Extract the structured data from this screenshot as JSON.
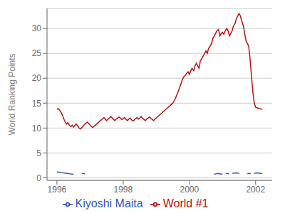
{
  "chart_data": {
    "type": "line",
    "ylabel": "World Ranking Points",
    "xlim": [
      1995.7,
      2002.5
    ],
    "ylim": [
      -0.5,
      34
    ],
    "xticks": [
      1996,
      1998,
      2000,
      2002
    ],
    "yticks": [
      0,
      5,
      10,
      15,
      20,
      25,
      30
    ],
    "grid": "y",
    "legend": "bottom",
    "series": [
      {
        "name": "World #1",
        "color": "#bb1111",
        "x": [
          1996.0,
          1996.04,
          1996.08,
          1996.12,
          1996.17,
          1996.21,
          1996.25,
          1996.29,
          1996.33,
          1996.38,
          1996.42,
          1996.46,
          1996.5,
          1996.54,
          1996.58,
          1996.63,
          1996.67,
          1996.71,
          1996.75,
          1996.79,
          1996.83,
          1996.88,
          1996.92,
          1996.96,
          1997.0,
          1997.04,
          1997.08,
          1997.13,
          1997.17,
          1997.21,
          1997.25,
          1997.29,
          1997.33,
          1997.38,
          1997.42,
          1997.46,
          1997.5,
          1997.54,
          1997.58,
          1997.63,
          1997.67,
          1997.71,
          1997.75,
          1997.79,
          1997.83,
          1997.88,
          1997.92,
          1997.96,
          1998.0,
          1998.04,
          1998.08,
          1998.13,
          1998.17,
          1998.21,
          1998.25,
          1998.29,
          1998.33,
          1998.38,
          1998.42,
          1998.46,
          1998.5,
          1998.54,
          1998.58,
          1998.63,
          1998.67,
          1998.71,
          1998.75,
          1998.79,
          1998.83,
          1998.88,
          1998.92,
          1998.96,
          1999.0,
          1999.04,
          1999.08,
          1999.13,
          1999.17,
          1999.21,
          1999.25,
          1999.29,
          1999.33,
          1999.38,
          1999.42,
          1999.46,
          1999.5,
          1999.54,
          1999.58,
          1999.63,
          1999.67,
          1999.71,
          1999.75,
          1999.79,
          1999.83,
          1999.88,
          1999.92,
          1999.96,
          2000.0,
          2000.04,
          2000.08,
          2000.13,
          2000.17,
          2000.21,
          2000.25,
          2000.29,
          2000.33,
          2000.38,
          2000.42,
          2000.46,
          2000.5,
          2000.54,
          2000.58,
          2000.63,
          2000.67,
          2000.71,
          2000.75,
          2000.79,
          2000.83,
          2000.88,
          2000.92,
          2000.96,
          2001.0,
          2001.04,
          2001.08,
          2001.13,
          2001.17,
          2001.21,
          2001.25,
          2001.29,
          2001.33,
          2001.38,
          2001.42,
          2001.46,
          2001.5,
          2001.54,
          2001.58,
          2001.63,
          2001.67,
          2001.71,
          2001.75,
          2001.79,
          2001.83,
          2001.88,
          2001.92,
          2001.96,
          2002.0,
          2002.1,
          2002.2
        ],
        "values": [
          13.8,
          13.9,
          13.6,
          13.2,
          12.5,
          11.8,
          11.2,
          10.8,
          11.1,
          10.5,
          10.3,
          10.6,
          10.2,
          10.5,
          10.8,
          10.4,
          10.0,
          9.8,
          10.1,
          10.4,
          10.7,
          11.0,
          11.2,
          10.9,
          10.6,
          10.3,
          10.1,
          10.4,
          10.6,
          10.9,
          11.1,
          11.4,
          11.6,
          11.9,
          12.1,
          11.8,
          11.5,
          11.8,
          12.0,
          12.3,
          12.0,
          11.7,
          11.5,
          11.8,
          12.0,
          12.2,
          12.0,
          11.7,
          11.9,
          12.1,
          11.8,
          11.5,
          11.8,
          12.0,
          11.7,
          11.4,
          11.6,
          11.9,
          12.1,
          11.8,
          12.0,
          12.3,
          12.0,
          11.7,
          11.5,
          11.8,
          12.0,
          12.2,
          12.0,
          11.7,
          11.5,
          11.8,
          12.0,
          12.3,
          12.5,
          12.8,
          13.0,
          13.3,
          13.5,
          13.8,
          14.0,
          14.3,
          14.5,
          14.8,
          15.0,
          15.5,
          16.0,
          16.8,
          17.5,
          18.2,
          19.0,
          19.8,
          20.3,
          20.6,
          21.0,
          21.3,
          20.8,
          21.5,
          22.0,
          21.5,
          22.5,
          23.0,
          22.5,
          22.0,
          23.5,
          24.0,
          24.5,
          25.0,
          25.5,
          25.0,
          26.0,
          26.5,
          27.0,
          28.0,
          28.5,
          29.0,
          29.5,
          29.8,
          28.5,
          29.0,
          29.2,
          28.8,
          29.5,
          30.0,
          29.5,
          28.5,
          29.0,
          29.5,
          30.5,
          31.0,
          32.0,
          32.5,
          33.0,
          32.5,
          31.5,
          30.5,
          29.0,
          27.5,
          27.0,
          26.5,
          24.0,
          20.0,
          17.0,
          15.0,
          14.2,
          13.9,
          13.8
        ]
      },
      {
        "name": "Kiyoshi Maita",
        "color": "#3355bb",
        "x": [
          1996.0,
          1996.05,
          1996.1,
          1996.15,
          1996.2,
          1996.25,
          1996.3,
          1996.35,
          1996.4,
          1996.45,
          1996.5,
          null,
          1996.75,
          1996.8,
          1996.85,
          null,
          2000.75,
          2000.8,
          2000.85,
          2000.9,
          2000.95,
          2001.0,
          null,
          2001.1,
          2001.15,
          2001.2,
          null,
          2001.3,
          2001.35,
          2001.4,
          2001.45,
          2001.5,
          null,
          2001.75,
          2001.8,
          2001.85,
          null,
          2001.95,
          2002.0,
          2002.05,
          2002.1,
          2002.15,
          2002.2
        ],
        "values": [
          1.2,
          1.15,
          1.1,
          1.05,
          1.0,
          0.95,
          0.9,
          0.85,
          0.8,
          0.75,
          0.7,
          null,
          0.9,
          0.85,
          0.8,
          null,
          0.7,
          0.8,
          0.9,
          0.85,
          0.75,
          0.8,
          null,
          0.9,
          0.85,
          0.8,
          null,
          0.9,
          0.95,
          1.0,
          0.95,
          0.9,
          null,
          0.85,
          0.9,
          0.85,
          null,
          0.9,
          0.95,
          1.0,
          0.95,
          0.9,
          0.85
        ]
      }
    ]
  }
}
